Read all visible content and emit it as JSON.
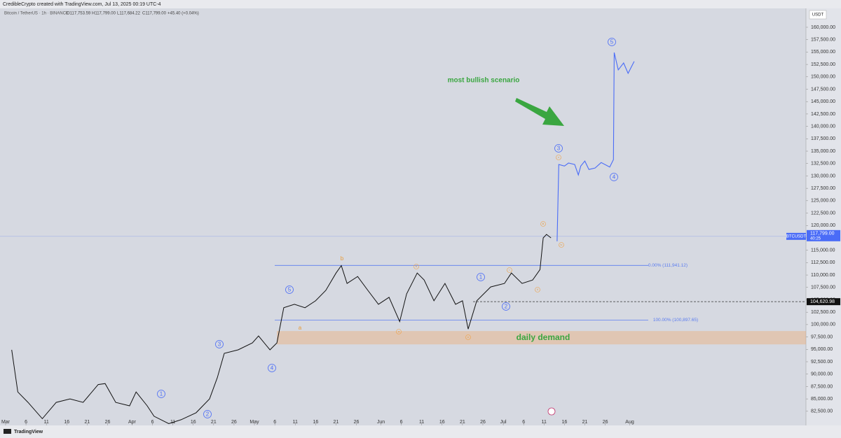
{
  "chart_data": {
    "type": "line",
    "header": "CredibleCrypto created with TradingView.com, Jul 13, 2025 00:19 UTC-4",
    "subtitle": "Bitcoin / TetherUS · 1h · BINANCE",
    "ohlc": [
      "O117,753.59",
      "H117,799.00",
      "L117,684.22",
      "C117,799.00",
      "+45.40 (+0.04%)"
    ],
    "currency": "USDT",
    "brand": "TradingView",
    "annotation": "most bullish scenario",
    "series": [
      {
        "name": "BTCUSDT",
        "color": "#111111",
        "x": [
          1.5,
          3,
          5.5,
          9,
          12.4,
          15.8,
          19,
          22.7,
          24.4,
          27,
          30.4,
          32,
          34.7,
          36.4,
          40,
          43,
          46.7,
          50,
          51.9,
          53.6,
          57,
          60.5,
          62,
          64.8,
          66.5,
          68.2,
          70.8,
          73.4,
          76,
          78.5,
          81,
          82.3,
          83.7,
          86.3,
          88.8,
          91.4,
          94,
          96.6,
          98.3,
          100.9,
          102.6,
          105,
          107.7,
          110.3,
          112,
          113.4,
          115.5,
          118.9,
          122.3,
          124,
          126.6,
          129.2,
          131,
          131.8,
          132.6,
          133.7
        ],
        "values": [
          94900,
          86400,
          84300,
          81000,
          84300,
          85000,
          84300,
          87900,
          88100,
          84300,
          83600,
          86400,
          83600,
          81500,
          80000,
          80800,
          82200,
          85000,
          89300,
          94200,
          94900,
          96300,
          97700,
          94900,
          96300,
          103400,
          104100,
          103400,
          104800,
          106900,
          110400,
          111900,
          108300,
          109700,
          106900,
          104100,
          105500,
          100600,
          106200,
          110400,
          109000,
          104800,
          108300,
          104100,
          104800,
          99100,
          104800,
          107600,
          108300,
          110400,
          108300,
          109000,
          111100,
          117500,
          118200,
          117500
        ]
      },
      {
        "color": "#4a6cf7",
        "x": [
          135.2,
          135.6,
          137,
          138,
          139.5,
          140.4,
          141,
          142,
          143,
          144.5,
          146,
          148.1,
          149,
          149.2,
          150.2,
          151.5,
          152.6,
          154.1
        ],
        "values": [
          116800,
          132300,
          132000,
          132600,
          132300,
          130200,
          132000,
          133000,
          131300,
          131600,
          132700,
          131800,
          133300,
          154900,
          151400,
          152800,
          150700,
          153100
        ]
      }
    ],
    "xlim": [
      -1.37,
      196.2
    ],
    "xticks": [
      {
        "value": 0,
        "label": "Mar"
      },
      {
        "value": 5,
        "label": "6"
      },
      {
        "value": 10,
        "label": "11"
      },
      {
        "value": 15,
        "label": "16"
      },
      {
        "value": 20,
        "label": "21"
      },
      {
        "value": 25,
        "label": "26"
      },
      {
        "value": 31,
        "label": "Apr"
      },
      {
        "value": 36,
        "label": "6"
      },
      {
        "value": 41,
        "label": "11"
      },
      {
        "value": 46,
        "label": "16"
      },
      {
        "value": 51,
        "label": "21"
      },
      {
        "value": 56,
        "label": "26"
      },
      {
        "value": 61,
        "label": "May"
      },
      {
        "value": 66,
        "label": "6"
      },
      {
        "value": 71,
        "label": "11"
      },
      {
        "value": 76,
        "label": "16"
      },
      {
        "value": 81,
        "label": "21"
      },
      {
        "value": 86,
        "label": "26"
      },
      {
        "value": 92,
        "label": "Jun"
      },
      {
        "value": 97,
        "label": "6"
      },
      {
        "value": 102,
        "label": "11"
      },
      {
        "value": 107,
        "label": "16"
      },
      {
        "value": 112,
        "label": "21"
      },
      {
        "value": 117,
        "label": "26"
      },
      {
        "value": 122,
        "label": "Jul"
      },
      {
        "value": 127,
        "label": "6"
      },
      {
        "value": 132,
        "label": "11"
      },
      {
        "value": 137,
        "label": "16"
      },
      {
        "value": 142,
        "label": "21"
      },
      {
        "value": 147,
        "label": "26"
      },
      {
        "value": 153,
        "label": "Aug"
      }
    ],
    "ylim": [
      79650,
      163810
    ],
    "yticks": [
      {
        "value": 82500,
        "label": "82,500.00"
      },
      {
        "value": 85000,
        "label": "85,000.00"
      },
      {
        "value": 87500,
        "label": "87,500.00"
      },
      {
        "value": 90000,
        "label": "90,000.00"
      },
      {
        "value": 92500,
        "label": "92,500.00"
      },
      {
        "value": 95000,
        "label": "95,000.00"
      },
      {
        "value": 97500,
        "label": "97,500.00"
      },
      {
        "value": 100000,
        "label": "100,000.00"
      },
      {
        "value": 102500,
        "label": "102,500.00"
      },
      {
        "value": 105000,
        "label": "105,000.00"
      },
      {
        "value": 107500,
        "label": "107,500.00"
      },
      {
        "value": 110000,
        "label": "110,000.00"
      },
      {
        "value": 112500,
        "label": "112,500.00"
      },
      {
        "value": 115000,
        "label": "115,000.00"
      },
      {
        "value": 117500,
        "label": "117,500.00"
      },
      {
        "value": 120000,
        "label": "120,000.00"
      },
      {
        "value": 122500,
        "label": "122,500.00"
      },
      {
        "value": 125000,
        "label": "125,000.00"
      },
      {
        "value": 127500,
        "label": "127,500.00"
      },
      {
        "value": 130000,
        "label": "130,000.00"
      },
      {
        "value": 132500,
        "label": "132,500.00"
      },
      {
        "value": 135000,
        "label": "135,000.00"
      },
      {
        "value": 137500,
        "label": "137,500.00"
      },
      {
        "value": 140000,
        "label": "140,000.00"
      },
      {
        "value": 142500,
        "label": "142,500.00"
      },
      {
        "value": 145000,
        "label": "145,000.00"
      },
      {
        "value": 147500,
        "label": "147,500.00"
      },
      {
        "value": 150000,
        "label": "150,000.00"
      },
      {
        "value": 152500,
        "label": "152,500.00"
      },
      {
        "value": 155000,
        "label": "155,000.00"
      },
      {
        "value": 157500,
        "label": "157,500.00"
      },
      {
        "value": 160000,
        "label": "160,000.00"
      }
    ],
    "last_price": {
      "value": 117799,
      "label": "117,799.00",
      "countdown": "40:25"
    },
    "marked_price": {
      "value": 104620.98,
      "label": "104,620.98"
    },
    "fib_levels": [
      {
        "value": 111941.12,
        "label": "0.00% (111,941.12)"
      },
      {
        "value": 100897.65,
        "label": "100.00% (100,897.65)"
      }
    ],
    "zone": {
      "range": [
        96000,
        98700
      ],
      "label": "daily demand"
    },
    "wave_labels": [
      "1",
      "2",
      "3",
      "4",
      "5",
      "1",
      "2",
      "3",
      "4",
      "5"
    ],
    "minor_labels": [
      "b",
      "a",
      "b",
      "a",
      "c",
      "i",
      "ii",
      "iii",
      "iv",
      "v"
    ]
  }
}
